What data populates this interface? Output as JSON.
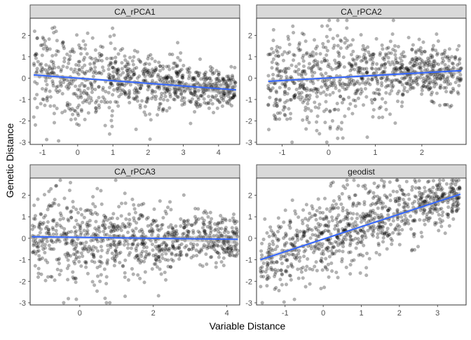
{
  "chart_data": {
    "type": "scatter",
    "xlabel": "Variable Distance",
    "ylabel": "Genetic Distance",
    "grid": false,
    "colors": {
      "points": "#000000",
      "fit_line": "#3366FF",
      "ribbon": "#999999",
      "strip": "#D9D9D9"
    },
    "facets": [
      {
        "title": "CA_rPCA1",
        "xlim": [
          -1.35,
          4.6
        ],
        "ylim": [
          -3.1,
          2.8
        ],
        "xticks": [
          -1,
          0,
          1,
          2,
          3,
          4
        ],
        "xtick_labels": [
          "-1",
          "0",
          "1",
          "2",
          "3",
          "4"
        ],
        "yticks": [
          -3,
          -2,
          -1,
          0,
          1,
          2
        ],
        "ytick_labels": [
          "-3",
          "-2",
          "-1",
          "0",
          "1",
          "2"
        ],
        "fit": {
          "x": [
            -1.25,
            4.5
          ],
          "y": [
            0.15,
            -0.55
          ]
        },
        "ci": {
          "x": [
            -1.25,
            0.5,
            2.0,
            3.5,
            4.5
          ],
          "half_width": [
            0.12,
            0.05,
            0.08,
            0.18,
            0.26
          ]
        },
        "n_points": 900,
        "point_density": [
          [
            -1.25,
            -0.5,
            0.8,
            2.7
          ],
          [
            -0.5,
            0.3,
            0.9,
            2.4
          ],
          [
            0.3,
            1.1,
            0.9,
            2.4
          ],
          [
            1.1,
            2.5,
            0.9,
            1.5
          ],
          [
            2.5,
            3.5,
            1.0,
            1.4
          ],
          [
            3.5,
            4.5,
            1.0,
            1.0
          ]
        ],
        "point_mean": [
          [
            -1.25,
            0.15
          ],
          [
            1.0,
            -0.1
          ],
          [
            4.5,
            -0.55
          ]
        ]
      },
      {
        "title": "CA_rPCA2",
        "xlim": [
          -1.55,
          2.95
        ],
        "ylim": [
          -3.1,
          2.8
        ],
        "xticks": [
          -1,
          0,
          1,
          2
        ],
        "xtick_labels": [
          "-1",
          "0",
          "1",
          "2"
        ],
        "yticks": [
          -3,
          -2,
          -1,
          0,
          1,
          2
        ],
        "ytick_labels": [
          "-3",
          "-2",
          "-1",
          "0",
          "1",
          "2"
        ],
        "fit": {
          "x": [
            -1.3,
            2.85
          ],
          "y": [
            -0.15,
            0.35
          ]
        },
        "ci": {
          "x": [
            -1.3,
            0.0,
            1.5,
            2.85
          ],
          "half_width": [
            0.1,
            0.05,
            0.08,
            0.16
          ]
        },
        "n_points": 900,
        "point_density": [
          [
            -1.3,
            -0.5,
            0.8,
            2.4
          ],
          [
            -0.5,
            0.5,
            0.9,
            2.5
          ],
          [
            0.5,
            1.5,
            0.9,
            2.1
          ],
          [
            1.5,
            2.85,
            1.0,
            1.5
          ]
        ],
        "point_mean": [
          [
            -1.3,
            -0.15
          ],
          [
            2.85,
            0.35
          ]
        ]
      },
      {
        "title": "CA_rPCA3",
        "xlim": [
          -1.35,
          4.35
        ],
        "ylim": [
          -3.1,
          2.8
        ],
        "xticks": [
          0,
          2,
          4
        ],
        "xtick_labels": [
          "0",
          "2",
          "4"
        ],
        "yticks": [
          -3,
          -2,
          -1,
          0,
          1,
          2
        ],
        "ytick_labels": [
          "-3",
          "-2",
          "-1",
          "0",
          "1",
          "2"
        ],
        "fit": {
          "x": [
            -1.3,
            4.3
          ],
          "y": [
            0.07,
            -0.05
          ]
        },
        "ci": {
          "x": [
            -1.3,
            0.5,
            2.5,
            4.3
          ],
          "half_width": [
            0.1,
            0.05,
            0.1,
            0.22
          ]
        },
        "n_points": 900,
        "point_density": [
          [
            -1.3,
            0.0,
            0.9,
            2.6
          ],
          [
            0.0,
            1.0,
            0.9,
            2.4
          ],
          [
            1.0,
            2.5,
            0.9,
            2.0
          ],
          [
            2.5,
            4.3,
            1.0,
            1.3
          ]
        ],
        "point_mean": [
          [
            -1.3,
            0.07
          ],
          [
            4.3,
            -0.05
          ]
        ]
      },
      {
        "title": "geodist",
        "xlim": [
          -1.75,
          3.75
        ],
        "ylim": [
          -3.1,
          2.8
        ],
        "xticks": [
          -1,
          0,
          1,
          2,
          3
        ],
        "xtick_labels": [
          "-1",
          "0",
          "1",
          "2",
          "3"
        ],
        "yticks": [
          -3,
          -2,
          -1,
          0,
          1,
          2
        ],
        "ytick_labels": [
          "-3",
          "-2",
          "-1",
          "0",
          "1",
          "2"
        ],
        "fit": {
          "x": [
            -1.65,
            3.6
          ],
          "y": [
            -1.0,
            2.05
          ]
        },
        "ci": {
          "x": [
            -1.65,
            0.0,
            1.5,
            3.6
          ],
          "half_width": [
            0.12,
            0.04,
            0.06,
            0.14
          ]
        },
        "n_points": 900,
        "point_density": [
          [
            -1.65,
            -0.5,
            0.6,
            2.0
          ],
          [
            -0.5,
            0.5,
            0.7,
            2.2
          ],
          [
            0.5,
            1.5,
            0.7,
            2.1
          ],
          [
            1.5,
            2.5,
            0.7,
            1.8
          ],
          [
            2.5,
            3.6,
            0.7,
            1.3
          ]
        ],
        "point_mean": [
          [
            -1.65,
            -1.0
          ],
          [
            3.6,
            2.05
          ]
        ]
      }
    ]
  }
}
